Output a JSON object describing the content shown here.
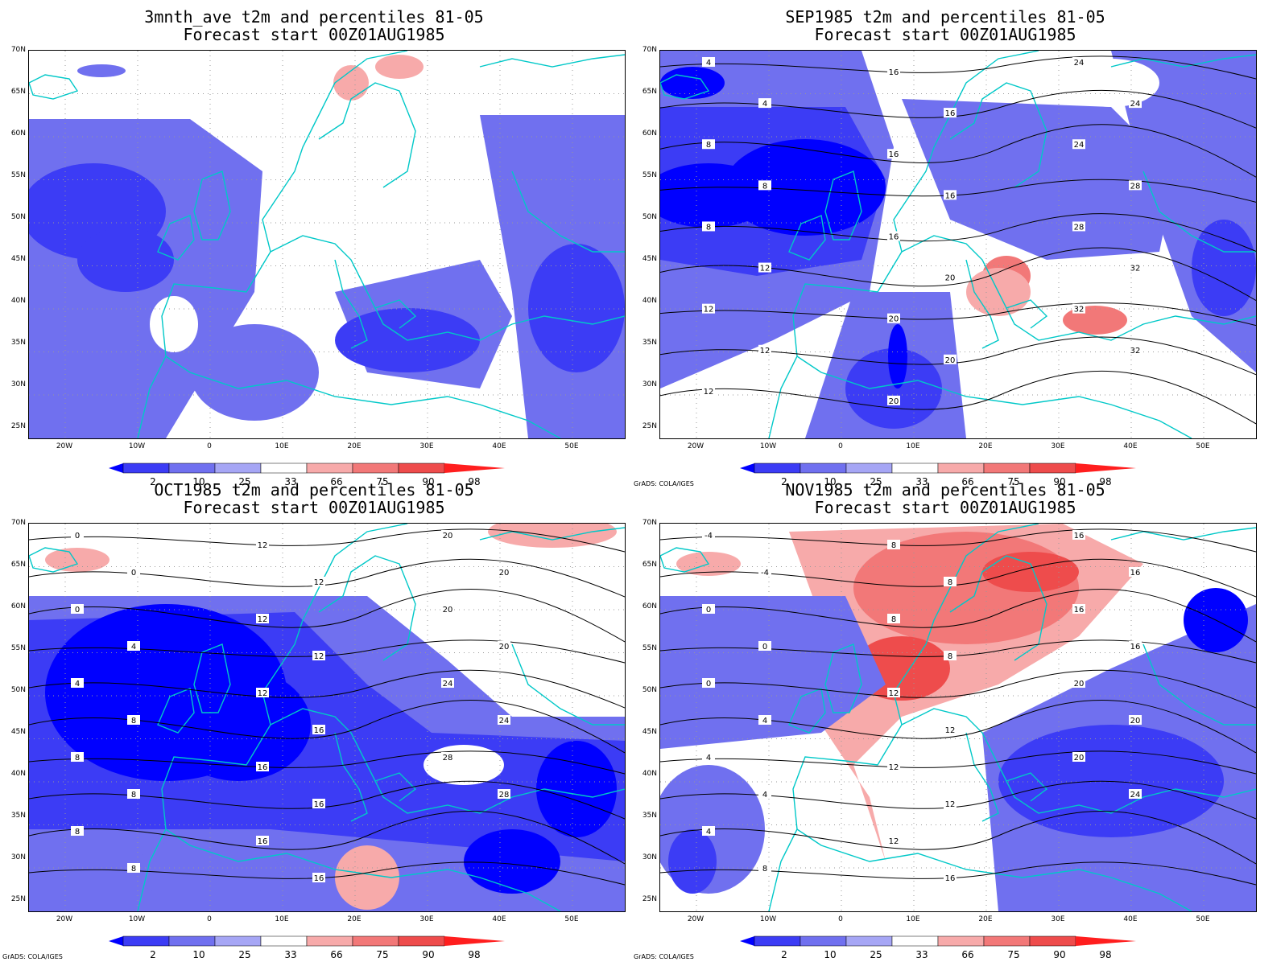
{
  "panels": [
    {
      "title_line1": "3mnth_ave t2m and percentiles 81-05",
      "title_line2": "Forecast start 00Z01AUG1985",
      "credit": "",
      "contour_labels": [],
      "shading": "mostly_blue"
    },
    {
      "title_line1": "SEP1985 t2m and percentiles 81-05",
      "title_line2": "Forecast start 00Z01AUG1985",
      "credit": "GrADS: COLA/IGES",
      "contour_labels": [
        "4",
        "4",
        "8",
        "8",
        "8",
        "12",
        "12",
        "12",
        "12",
        "16",
        "16",
        "16",
        "16",
        "16",
        "20",
        "20",
        "20",
        "20",
        "24",
        "24",
        "24",
        "28",
        "28",
        "32",
        "32",
        "32"
      ],
      "shading": "blue_west_red_east"
    },
    {
      "title_line1": "OCT1985 t2m and percentiles 81-05",
      "title_line2": "Forecast start 00Z01AUG1985",
      "credit": "GrADS: COLA/IGES",
      "contour_labels": [
        "0",
        "0",
        "0",
        "4",
        "4",
        "8",
        "8",
        "8",
        "8",
        "8",
        "12",
        "12",
        "12",
        "12",
        "12",
        "16",
        "16",
        "16",
        "16",
        "16",
        "20",
        "20",
        "20",
        "20",
        "24",
        "24",
        "28",
        "28"
      ],
      "shading": "deep_blue"
    },
    {
      "title_line1": "NOV1985 t2m and percentiles 81-05",
      "title_line2": "Forecast start 00Z01AUG1985",
      "credit": "GrADS: COLA/IGES",
      "contour_labels": [
        "-4",
        "-4",
        "0",
        "0",
        "0",
        "4",
        "4",
        "4",
        "4",
        "8",
        "8",
        "8",
        "8",
        "8",
        "12",
        "12",
        "12",
        "12",
        "12",
        "16",
        "16",
        "16",
        "16",
        "16",
        "20",
        "20",
        "20",
        "24"
      ],
      "shading": "red_north_blue_south"
    }
  ],
  "lat_labels": [
    "70N",
    "65N",
    "60N",
    "55N",
    "50N",
    "45N",
    "40N",
    "35N",
    "30N",
    "25N"
  ],
  "lon_labels": [
    "20W",
    "10W",
    "0",
    "10E",
    "20E",
    "30E",
    "40E",
    "50E"
  ],
  "colorbar": {
    "labels": [
      "2",
      "10",
      "25",
      "33",
      "66",
      "75",
      "90",
      "98"
    ],
    "colors": [
      "#0000ff",
      "#3c3cf5",
      "#7070ef",
      "#a6a6f5",
      "#ffffff",
      "#f7aaaa",
      "#f27878",
      "#ee4c4c",
      "#ff1e1e"
    ]
  },
  "colors": {
    "coast": "#00c8c8",
    "contour": "#000000"
  }
}
